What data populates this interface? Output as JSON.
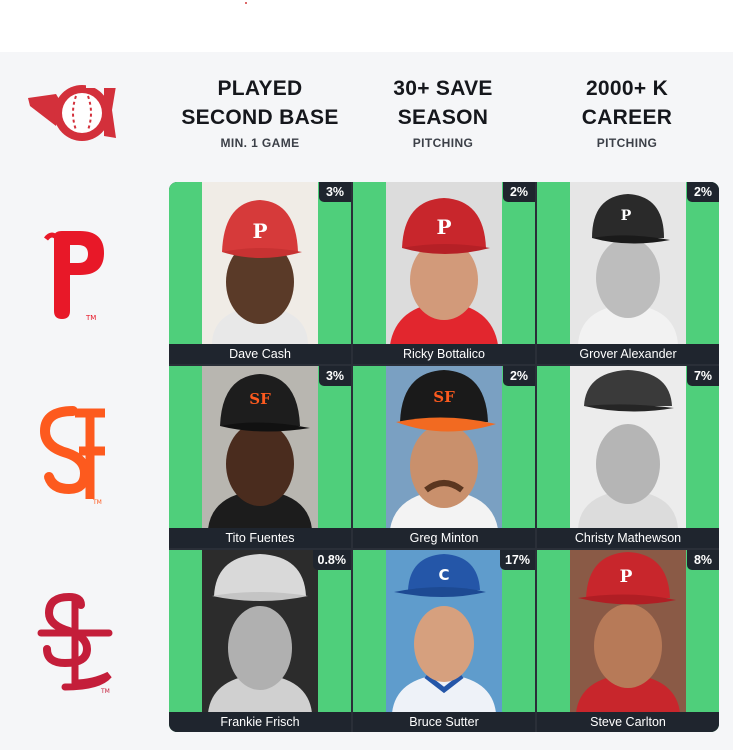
{
  "columns": [
    {
      "title": "PLAYED SECOND BASE",
      "title_line1": "PLAYED",
      "title_line2": "SECOND BASE",
      "subtitle": "MIN. 1 GAME"
    },
    {
      "title": "30+ SAVE SEASON",
      "title_line1": "30+ SAVE",
      "title_line2": "SEASON",
      "subtitle": "PITCHING"
    },
    {
      "title": "2000+ K CAREER",
      "title_line1": "2000+ K",
      "title_line2": "CAREER",
      "subtitle": "PITCHING"
    }
  ],
  "rows": [
    {
      "team": "Philadelphia Phillies",
      "logo_icon": "phillies-p-logo-icon",
      "logo_color": "#e81828"
    },
    {
      "team": "San Francisco Giants",
      "logo_icon": "giants-sf-logo-icon",
      "logo_color": "#fd5a1e"
    },
    {
      "team": "St. Louis Cardinals",
      "logo_icon": "cardinals-stl-logo-icon",
      "logo_color": "#c41e3a"
    }
  ],
  "cells": [
    [
      {
        "player": "Dave Cash",
        "pct": "3%",
        "cap": "#d63a3a",
        "cap_mark": "P",
        "skin": "#5a3a28",
        "bw": false
      },
      {
        "player": "Ricky Bottalico",
        "pct": "2%",
        "cap": "#c8262c",
        "cap_mark": "P",
        "skin": "#d29a7a",
        "bw": false
      },
      {
        "player": "Grover Alexander",
        "pct": "2%",
        "cap": "#2a2a2a",
        "cap_mark": "P",
        "skin": "#bdbdbd",
        "bw": true
      }
    ],
    [
      {
        "player": "Tito Fuentes",
        "pct": "3%",
        "cap": "#1d1d1d",
        "cap_mark": "SF",
        "skin": "#4a2c1e",
        "bw": false
      },
      {
        "player": "Greg Minton",
        "pct": "2%",
        "cap": "#1a1a1a",
        "cap_mark": "SF",
        "skin": "#c9906c",
        "bw": false
      },
      {
        "player": "Christy Mathewson",
        "pct": "7%",
        "cap": "#3a3a3a",
        "cap_mark": "",
        "skin": "#b5b5b5",
        "bw": true
      }
    ],
    [
      {
        "player": "Frankie Frisch",
        "pct": "0.8%",
        "cap": "#d9d9d9",
        "cap_mark": "",
        "skin": "#b0b0b0",
        "bw": true
      },
      {
        "player": "Bruce Sutter",
        "pct": "17%",
        "cap": "#2456a8",
        "cap_mark": "C",
        "skin": "#d6a07e",
        "bw": false
      },
      {
        "player": "Steve Carlton",
        "pct": "8%",
        "cap": "#c8262c",
        "cap_mark": "P",
        "skin": "#b77a58",
        "bw": false
      }
    ]
  ],
  "colors": {
    "cell_green": "#4fcf7b",
    "nameplate": "#1f252e",
    "brand_red": "#d3303b"
  }
}
